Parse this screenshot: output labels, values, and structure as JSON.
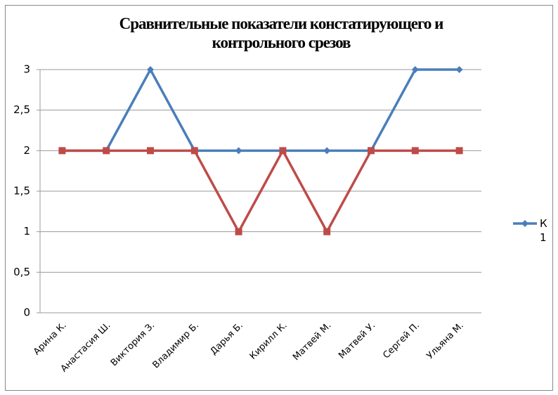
{
  "chart_data": {
    "type": "line",
    "title": "Сравнительные показатели констатирующего и контрольного срезов",
    "categories": [
      "Арина К.",
      "Анастасия Ш.",
      "Виктория З.",
      "Владимир Б.",
      "Дарья Б.",
      "Кирилл К.",
      "Матвей М.",
      "Матвей У.",
      "Сергей П.",
      "Ульяна М."
    ],
    "series": [
      {
        "name": "К 1",
        "color": "#4a7ebb",
        "marker": "diamond",
        "values": [
          2,
          2,
          3,
          2,
          2,
          2,
          2,
          2,
          3,
          3
        ]
      },
      {
        "color": "#be4b48",
        "marker": "square",
        "values": [
          2,
          2,
          2,
          2,
          1,
          2,
          1,
          2,
          2,
          2
        ]
      }
    ],
    "ylim": [
      0,
      3
    ],
    "yticks": [
      0,
      {
        "value": 0.5,
        "label": "0,5"
      },
      1,
      {
        "value": 1.5,
        "label": "1,5"
      },
      2,
      {
        "value": 2.5,
        "label": "2,5"
      },
      3
    ],
    "grid": true,
    "legend": "right"
  }
}
